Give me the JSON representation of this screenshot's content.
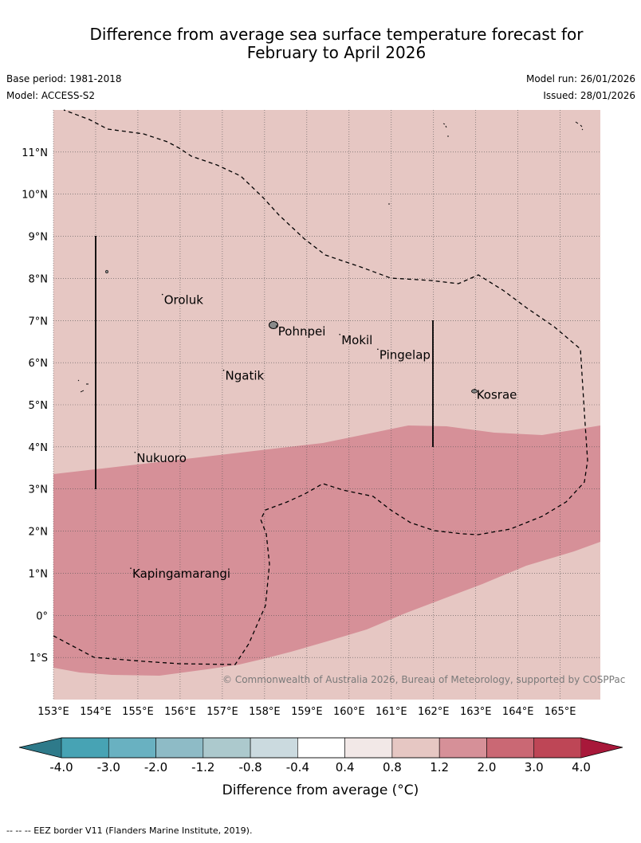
{
  "title_line1": "Difference from average sea surface temperature forecast for",
  "title_line2": "February to April 2026",
  "meta": {
    "base_period": "Base period: 1981-2018",
    "model": "Model: ACCESS-S2",
    "model_run": "Model run: 26/01/2026",
    "issued": "Issued: 28/01/2026"
  },
  "map": {
    "extent": {
      "lon_min": 153.0,
      "lon_max": 165.95,
      "lat_min": -2.0,
      "lat_max": 12.0
    },
    "lon_ticks": [
      {
        "value": 153,
        "label": "153°E"
      },
      {
        "value": 154,
        "label": "154°E"
      },
      {
        "value": 155,
        "label": "155°E"
      },
      {
        "value": 156,
        "label": "156°E"
      },
      {
        "value": 157,
        "label": "157°E"
      },
      {
        "value": 158,
        "label": "158°E"
      },
      {
        "value": 159,
        "label": "159°E"
      },
      {
        "value": 160,
        "label": "160°E"
      },
      {
        "value": 161,
        "label": "161°E"
      },
      {
        "value": 162,
        "label": "162°E"
      },
      {
        "value": 163,
        "label": "163°E"
      },
      {
        "value": 164,
        "label": "164°E"
      },
      {
        "value": 165,
        "label": "165°E"
      }
    ],
    "lat_ticks": [
      {
        "value": 11,
        "label": "11°N"
      },
      {
        "value": 10,
        "label": "10°N"
      },
      {
        "value": 9,
        "label": "9°N"
      },
      {
        "value": 8,
        "label": "8°N"
      },
      {
        "value": 7,
        "label": "7°N"
      },
      {
        "value": 6,
        "label": "6°N"
      },
      {
        "value": 5,
        "label": "5°N"
      },
      {
        "value": 4,
        "label": "4°N"
      },
      {
        "value": 3,
        "label": "3°N"
      },
      {
        "value": 2,
        "label": "2°N"
      },
      {
        "value": 1,
        "label": "1°N"
      },
      {
        "value": 0,
        "label": "0°"
      },
      {
        "value": -1,
        "label": "1°S"
      }
    ],
    "places": [
      {
        "name": "Oroluk",
        "lon": 155.6,
        "lat": 7.6
      },
      {
        "name": "Pohnpei",
        "lon": 158.3,
        "lat": 6.85
      },
      {
        "name": "Mokil",
        "lon": 159.8,
        "lat": 6.65
      },
      {
        "name": "Pingelap",
        "lon": 160.7,
        "lat": 6.3
      },
      {
        "name": "Ngatik",
        "lon": 157.05,
        "lat": 5.8
      },
      {
        "name": "Kosrae",
        "lon": 163.0,
        "lat": 5.35
      },
      {
        "name": "Nukuoro",
        "lon": 154.95,
        "lat": 3.85
      },
      {
        "name": "Kapingamarangi",
        "lon": 154.85,
        "lat": 1.1
      }
    ],
    "copyright": "© Commonwealth of Australia 2026, Bureau of Meteorology, supported by COSPPac"
  },
  "colorbar": {
    "title": "Difference from average (°C)",
    "tick_labels": [
      "-4.0",
      "-3.0",
      "-2.0",
      "-1.2",
      "-0.8",
      "-0.4",
      "0.4",
      "0.8",
      "1.2",
      "2.0",
      "3.0",
      "4.0"
    ],
    "low_extend_color": "#2e7a8a",
    "high_extend_color": "#a8183a",
    "colors": [
      "#47a3b4",
      "#69b1c1",
      "#8ebbc6",
      "#acc9cd",
      "#cbdadf",
      "#ffffff",
      "#f2e8e7",
      "#e6c7c3",
      "#d69098",
      "#ca6874",
      "#be4656"
    ]
  },
  "legend_note": "--  --  -- EEZ border V11 (Flanders Marine Institute, 2019).",
  "fill_colors": {
    "band_0_8_to_1_2": "#e6c7c3",
    "band_1_2_to_2_0": "#d69098"
  }
}
